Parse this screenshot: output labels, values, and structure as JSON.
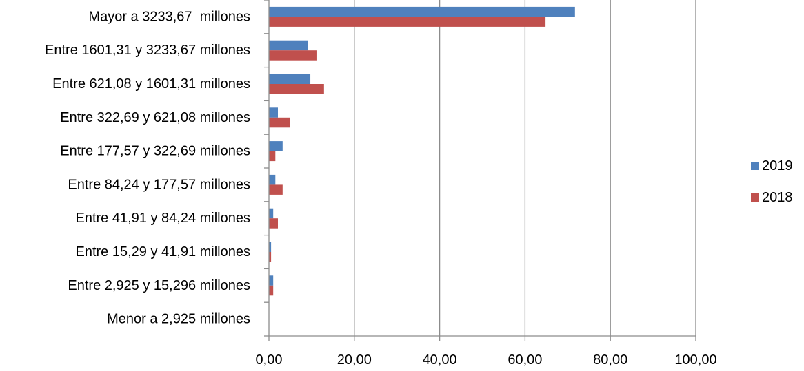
{
  "chart_data": {
    "type": "bar",
    "orientation": "horizontal",
    "title": "",
    "xlabel": "",
    "ylabel": "",
    "categories": [
      "Mayor a 3233,67  millones",
      "Entre 1601,31 y 3233,67 millones",
      "Entre 621,08 y 1601,31 millones",
      "Entre 322,69 y 621,08 millones",
      "Entre 177,57 y 322,69 millones",
      "Entre 84,24 y 177,57 millones",
      "Entre 41,91 y 84,24 millones",
      "Entre 15,29 y 41,91 millones",
      "Entre 2,925 y 15,296 millones",
      "Menor a 2,925 millones"
    ],
    "series": [
      {
        "name": "2019",
        "color": "#4F81BD",
        "values": [
          71.7,
          9.1,
          9.7,
          2.1,
          3.2,
          1.5,
          1.0,
          0.5,
          1.0,
          0.0
        ]
      },
      {
        "name": "2018",
        "color": "#C0504D",
        "values": [
          64.8,
          11.3,
          12.9,
          4.9,
          1.5,
          3.2,
          2.1,
          0.5,
          1.0,
          0.0
        ]
      }
    ],
    "xlim": [
      0,
      100
    ],
    "xticks": [
      0,
      20,
      40,
      60,
      80,
      100
    ],
    "xtick_labels": [
      "0,00",
      "20,00",
      "40,00",
      "60,00",
      "80,00",
      "100,00"
    ],
    "grid": "vertical",
    "legend_position": "right"
  }
}
